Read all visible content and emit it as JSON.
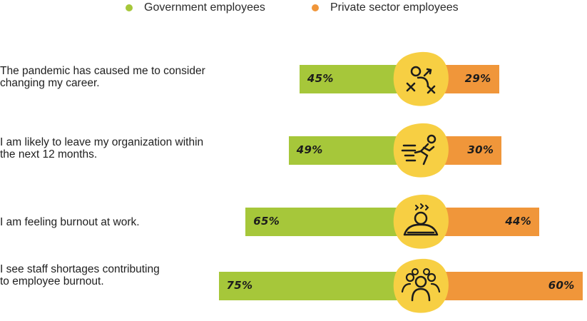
{
  "legend": {
    "government": "Government employees",
    "private": "Private sector employees"
  },
  "colors": {
    "government": "#a6c73a",
    "private": "#f0963a",
    "badge": "#f7cf43",
    "ink": "#1c1c1c"
  },
  "chart_data": {
    "type": "bar",
    "orientation": "diverging-horizontal",
    "legend_position": "top",
    "grid": false,
    "categories": [
      "The pandemic has caused me to consider changing my career.",
      "I am likely to leave my organization within the next 12 months.",
      "I am feeling burnout at work.",
      "I see staff shortages contributing to employee burnout."
    ],
    "series": [
      {
        "name": "Government employees",
        "values": [
          45,
          49,
          65,
          75
        ],
        "labels": [
          "45%",
          "49%",
          "65%",
          "75%"
        ],
        "color": "#a6c73a",
        "side": "left"
      },
      {
        "name": "Private sector employees",
        "values": [
          29,
          30,
          44,
          60
        ],
        "labels": [
          "29%",
          "30%",
          "44%",
          "60%"
        ],
        "color": "#f0963a",
        "side": "right"
      }
    ],
    "icons": [
      "strategy-playbook-icon",
      "running-person-icon",
      "burnout-person-icon",
      "group-of-people-icon"
    ]
  },
  "rows": [
    {
      "line1": "The pandemic has caused me to consider",
      "line2": "changing my career."
    },
    {
      "line1": "I am likely to leave my organization within",
      "line2": "the next 12 months."
    },
    {
      "line1": "I am feeling burnout at work.",
      "line2": ""
    },
    {
      "line1": "I see staff shortages contributing",
      "line2": "to employee burnout."
    }
  ]
}
